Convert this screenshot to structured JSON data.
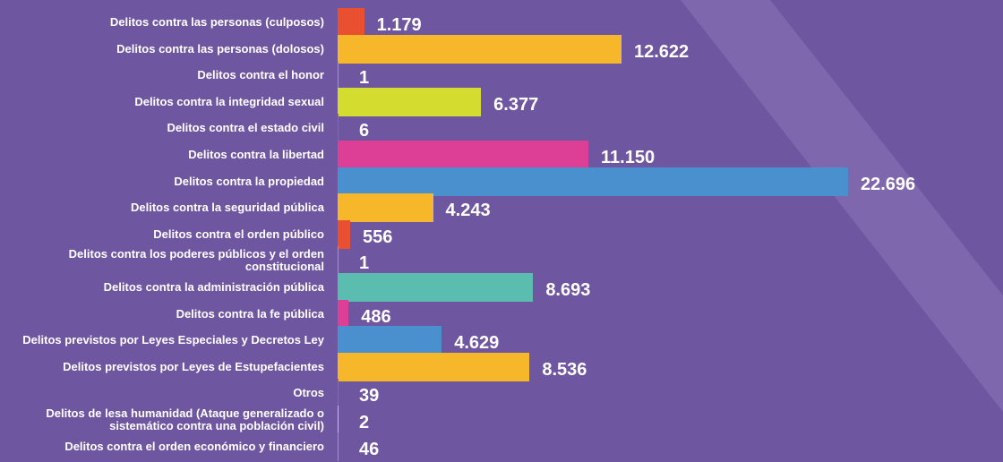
{
  "chart_data": {
    "type": "bar",
    "orientation": "horizontal",
    "categories": [
      "Delitos contra las personas (culposos)",
      "Delitos contra las personas (dolosos)",
      "Delitos contra el honor",
      "Delitos contra la integridad sexual",
      "Delitos contra el estado civil",
      "Delitos contra la libertad",
      "Delitos contra la propiedad",
      "Delitos contra la seguridad pública",
      "Delitos contra el orden público",
      "Delitos contra los poderes públicos y el orden constitucional",
      "Delitos contra la administración pública",
      "Delitos contra la fe pública",
      "Delitos previstos por Leyes Especiales y Decretos Ley",
      "Delitos previstos por Leyes de Estupefacientes",
      "Otros",
      "Delitos de lesa humanidad (Ataque generalizado o sistemático contra una población civil)",
      "Delitos contra el orden económico y financiero"
    ],
    "values": [
      1179,
      12622,
      1,
      6377,
      6,
      11150,
      22696,
      4243,
      556,
      1,
      8693,
      486,
      4629,
      8536,
      39,
      2,
      46
    ],
    "value_labels": [
      "1.179",
      "12.622",
      "1",
      "6.377",
      "6",
      "11.150",
      "22.696",
      "4.243",
      "556",
      "1",
      "8.693",
      "486",
      "4.629",
      "8.536",
      "39",
      "2",
      "46"
    ],
    "colors": [
      "#e8502f",
      "#f6b72b",
      "#5bbcb0",
      "#d4dc2f",
      "#dd3f96",
      "#dd3f96",
      "#4a8fce",
      "#f6b72b",
      "#e8502f",
      "#5bbcb0",
      "#5bbcb0",
      "#dd3f96",
      "#4a8fce",
      "#f6b72b",
      "#e8502f",
      "#d4dc2f",
      "#5bbcb0"
    ]
  }
}
